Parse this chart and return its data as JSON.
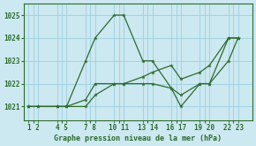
{
  "title": "Graphe pression niveau de la mer (hPa)",
  "background_color": "#cce8f0",
  "grid_color": "#9ecfdf",
  "line_color": "#2d6b2d",
  "series1": {
    "x": [
      1,
      2,
      4,
      5,
      7,
      8,
      10,
      11,
      13,
      14,
      16,
      17,
      19,
      20,
      22,
      23
    ],
    "y": [
      1021,
      1021,
      1021,
      1021,
      1023,
      1024,
      1025,
      1025,
      1023,
      1023,
      1021.8,
      1021,
      1022,
      1022,
      1024,
      1024
    ]
  },
  "series2": {
    "x": [
      1,
      2,
      4,
      5,
      7,
      8,
      10,
      11,
      13,
      14,
      16,
      17,
      19,
      20,
      22,
      23
    ],
    "y": [
      1021,
      1021,
      1021,
      1021,
      1021.3,
      1022,
      1022,
      1022,
      1022,
      1022,
      1021.8,
      1021.5,
      1022,
      1022,
      1023,
      1024
    ]
  },
  "series3": {
    "x": [
      1,
      4,
      5,
      7,
      8,
      10,
      11,
      13,
      14,
      16,
      17,
      19,
      20,
      22,
      23
    ],
    "y": [
      1021,
      1021,
      1021,
      1021,
      1021.5,
      1022,
      1022,
      1022.3,
      1022.5,
      1022.8,
      1022.2,
      1022.5,
      1022.8,
      1024,
      1024
    ]
  },
  "xtick_positions": [
    1.5,
    4.5,
    7.5,
    10.5,
    13.5,
    16.5,
    19.5,
    22.5
  ],
  "xtick_labels": [
    "1 2",
    "4 5",
    "7 8",
    "10 11",
    "13 14",
    "16 17",
    "19 20",
    "22 23"
  ],
  "ytick_positions": [
    1021,
    1022,
    1023,
    1024,
    1025
  ],
  "ytick_labels": [
    "1021",
    "1022",
    "1023",
    "1024",
    "1025"
  ],
  "ylim": [
    1020.4,
    1025.5
  ],
  "xlim": [
    0.5,
    24.5
  ]
}
